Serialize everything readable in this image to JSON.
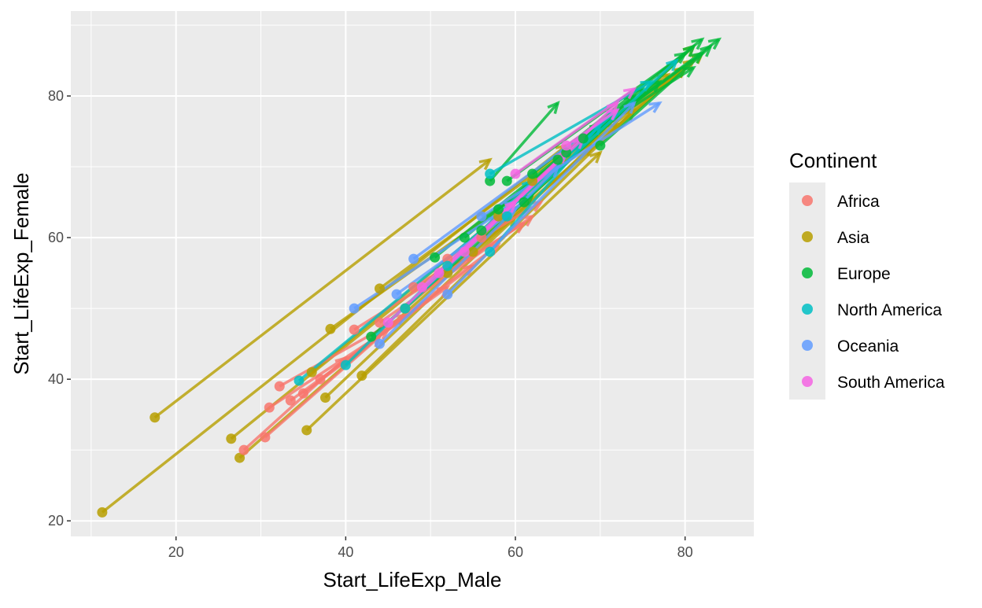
{
  "chart_data": {
    "type": "scatter",
    "subtype": "segments-with-arrows",
    "xlabel": "Start_LifeExp_Male",
    "ylabel": "Start_LifeExp_Female",
    "xlim": [
      7.6,
      88.1
    ],
    "ylim": [
      17.8,
      92
    ],
    "xticks": [
      20,
      40,
      60,
      80
    ],
    "yticks": [
      20,
      40,
      60,
      80
    ],
    "grid": true,
    "legend": {
      "title": "Continent",
      "placement": "right"
    },
    "series": [
      {
        "name": "Africa",
        "color": "#F8766D"
      },
      {
        "name": "Asia",
        "color": "#B79F00"
      },
      {
        "name": "Europe",
        "color": "#00BA38"
      },
      {
        "name": "North America",
        "color": "#00BFC4"
      },
      {
        "name": "Oceania",
        "color": "#619CFF"
      },
      {
        "name": "South America",
        "color": "#F564E3"
      }
    ],
    "segment_fields": [
      "series_index",
      "start_male",
      "start_female",
      "end_male",
      "end_female"
    ],
    "segments": [
      [
        1,
        11.3,
        21.2,
        66,
        73
      ],
      [
        1,
        17.5,
        34.6,
        57,
        71
      ],
      [
        1,
        26.5,
        31.6,
        62,
        66
      ],
      [
        1,
        27.5,
        28.9,
        60,
        63
      ],
      [
        1,
        35.4,
        32.8,
        70,
        72
      ],
      [
        1,
        38.2,
        47.1,
        72,
        76
      ],
      [
        1,
        41.9,
        40.5,
        74,
        78
      ],
      [
        1,
        37.6,
        37.4,
        69,
        73
      ],
      [
        1,
        44,
        52.8,
        78,
        83
      ],
      [
        1,
        47,
        50,
        80,
        84
      ],
      [
        1,
        52,
        55,
        81,
        87
      ],
      [
        1,
        55,
        58,
        82,
        86
      ],
      [
        1,
        58,
        63,
        80,
        84
      ],
      [
        1,
        62,
        68,
        81,
        85
      ],
      [
        1,
        36,
        41,
        72,
        77
      ],
      [
        0,
        28,
        30,
        40,
        43
      ],
      [
        0,
        30.5,
        31.8,
        44,
        46
      ],
      [
        0,
        32.2,
        39,
        47,
        49
      ],
      [
        0,
        31,
        36,
        45,
        47
      ],
      [
        0,
        33.5,
        37,
        52,
        53
      ],
      [
        0,
        35,
        38,
        55,
        56
      ],
      [
        0,
        37,
        40,
        58,
        59
      ],
      [
        0,
        41,
        47,
        61,
        62
      ],
      [
        0,
        44,
        48,
        62,
        63
      ],
      [
        0,
        48,
        53,
        55,
        58
      ],
      [
        0,
        52,
        57,
        62,
        66
      ],
      [
        0,
        56,
        60,
        63,
        65
      ],
      [
        2,
        50.5,
        57.2,
        70,
        76
      ],
      [
        2,
        54,
        60,
        74,
        80
      ],
      [
        2,
        56,
        61,
        75,
        81
      ],
      [
        2,
        58,
        64,
        77,
        82
      ],
      [
        2,
        59,
        68,
        80,
        86
      ],
      [
        2,
        61,
        65,
        81,
        87
      ],
      [
        2,
        62,
        69,
        82,
        88
      ],
      [
        2,
        65,
        71,
        84,
        88
      ],
      [
        2,
        66,
        72,
        82,
        86
      ],
      [
        2,
        68,
        74,
        81,
        84
      ],
      [
        2,
        70,
        73,
        83,
        87
      ],
      [
        2,
        57,
        68,
        65,
        79
      ],
      [
        2,
        43,
        46,
        62,
        66
      ],
      [
        3,
        34.5,
        39.8,
        58,
        63
      ],
      [
        3,
        40,
        42,
        62,
        68
      ],
      [
        3,
        47,
        50,
        68,
        74
      ],
      [
        3,
        52,
        56,
        72,
        78
      ],
      [
        3,
        57,
        69,
        76,
        82
      ],
      [
        3,
        59,
        63,
        79,
        85
      ],
      [
        3,
        57,
        58,
        70,
        76
      ],
      [
        4,
        41,
        50,
        60,
        65
      ],
      [
        4,
        44,
        45,
        65,
        70
      ],
      [
        4,
        48,
        57,
        72,
        78
      ],
      [
        4,
        52,
        52,
        74,
        79
      ],
      [
        4,
        56,
        63,
        77,
        79
      ],
      [
        4,
        46,
        52,
        60,
        64
      ],
      [
        5,
        45,
        48,
        60,
        65
      ],
      [
        5,
        49,
        53,
        66,
        72
      ],
      [
        5,
        51,
        55,
        68,
        74
      ],
      [
        5,
        54,
        58,
        72,
        79
      ],
      [
        5,
        60,
        69,
        74,
        81
      ],
      [
        5,
        66,
        73,
        72,
        78
      ]
    ]
  }
}
